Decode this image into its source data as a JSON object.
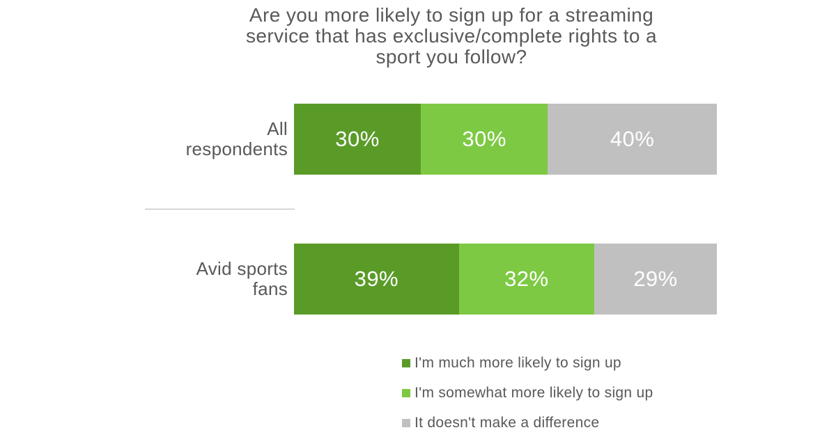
{
  "title": {
    "text": "Are you more likely to sign up for a streaming service that has exclusive/complete rights to a sport you follow?",
    "lines": [
      "Are you more likely to sign up for a streaming",
      "service that has exclusive/complete rights to a",
      "sport you follow?"
    ]
  },
  "chart_data": {
    "type": "bar",
    "orientation": "horizontal",
    "stacked": true,
    "value_unit": "percent",
    "xlim": [
      0,
      100
    ],
    "grid": false,
    "legend_position": "bottom-right",
    "categories": [
      "All respondents",
      "Avid sports fans"
    ],
    "category_label_lines": [
      [
        "All",
        "respondents"
      ],
      [
        "Avid sports",
        "fans"
      ]
    ],
    "series": [
      {
        "name": "I'm much more likely to sign up",
        "color": "#5a9b28",
        "values": [
          30,
          39
        ]
      },
      {
        "name": "I'm somewhat more likely to sign up",
        "color": "#7dc943",
        "values": [
          30,
          32
        ]
      },
      {
        "name": "It doesn't make a difference",
        "color": "#c0c0c0",
        "values": [
          40,
          29
        ]
      }
    ],
    "value_labels": [
      [
        "30%",
        "30%",
        "40%"
      ],
      [
        "39%",
        "32%",
        "29%"
      ]
    ]
  },
  "colors": {
    "background": "#ffffff",
    "title_text": "#595959",
    "category_text": "#595959",
    "legend_text": "#595959",
    "bar_value_text": "#ffffff",
    "divider": "#b4b4b4"
  }
}
